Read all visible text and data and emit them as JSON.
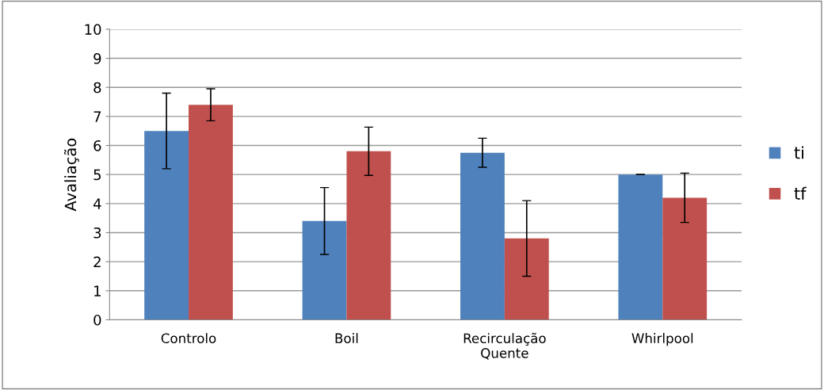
{
  "chart_data": {
    "type": "bar",
    "ylabel": "Avaliação",
    "categories": [
      "Controlo",
      "Boil",
      "Recirculação\nQuente",
      "Whirlpool"
    ],
    "series": [
      {
        "name": "ti",
        "color": "#4f81bd",
        "values": [
          6.5,
          3.4,
          5.75,
          5.0
        ],
        "errors": [
          1.3,
          1.15,
          0.5,
          0
        ]
      },
      {
        "name": "tf",
        "color": "#c0504d",
        "values": [
          7.4,
          5.8,
          2.8,
          4.2
        ],
        "errors": [
          0.55,
          0.83,
          1.3,
          0.85
        ]
      }
    ],
    "ylim": [
      0,
      10
    ],
    "yticks": [
      0,
      1,
      2,
      3,
      4,
      5,
      6,
      7,
      8,
      9,
      10
    ],
    "grid": "y",
    "legend": "right"
  }
}
